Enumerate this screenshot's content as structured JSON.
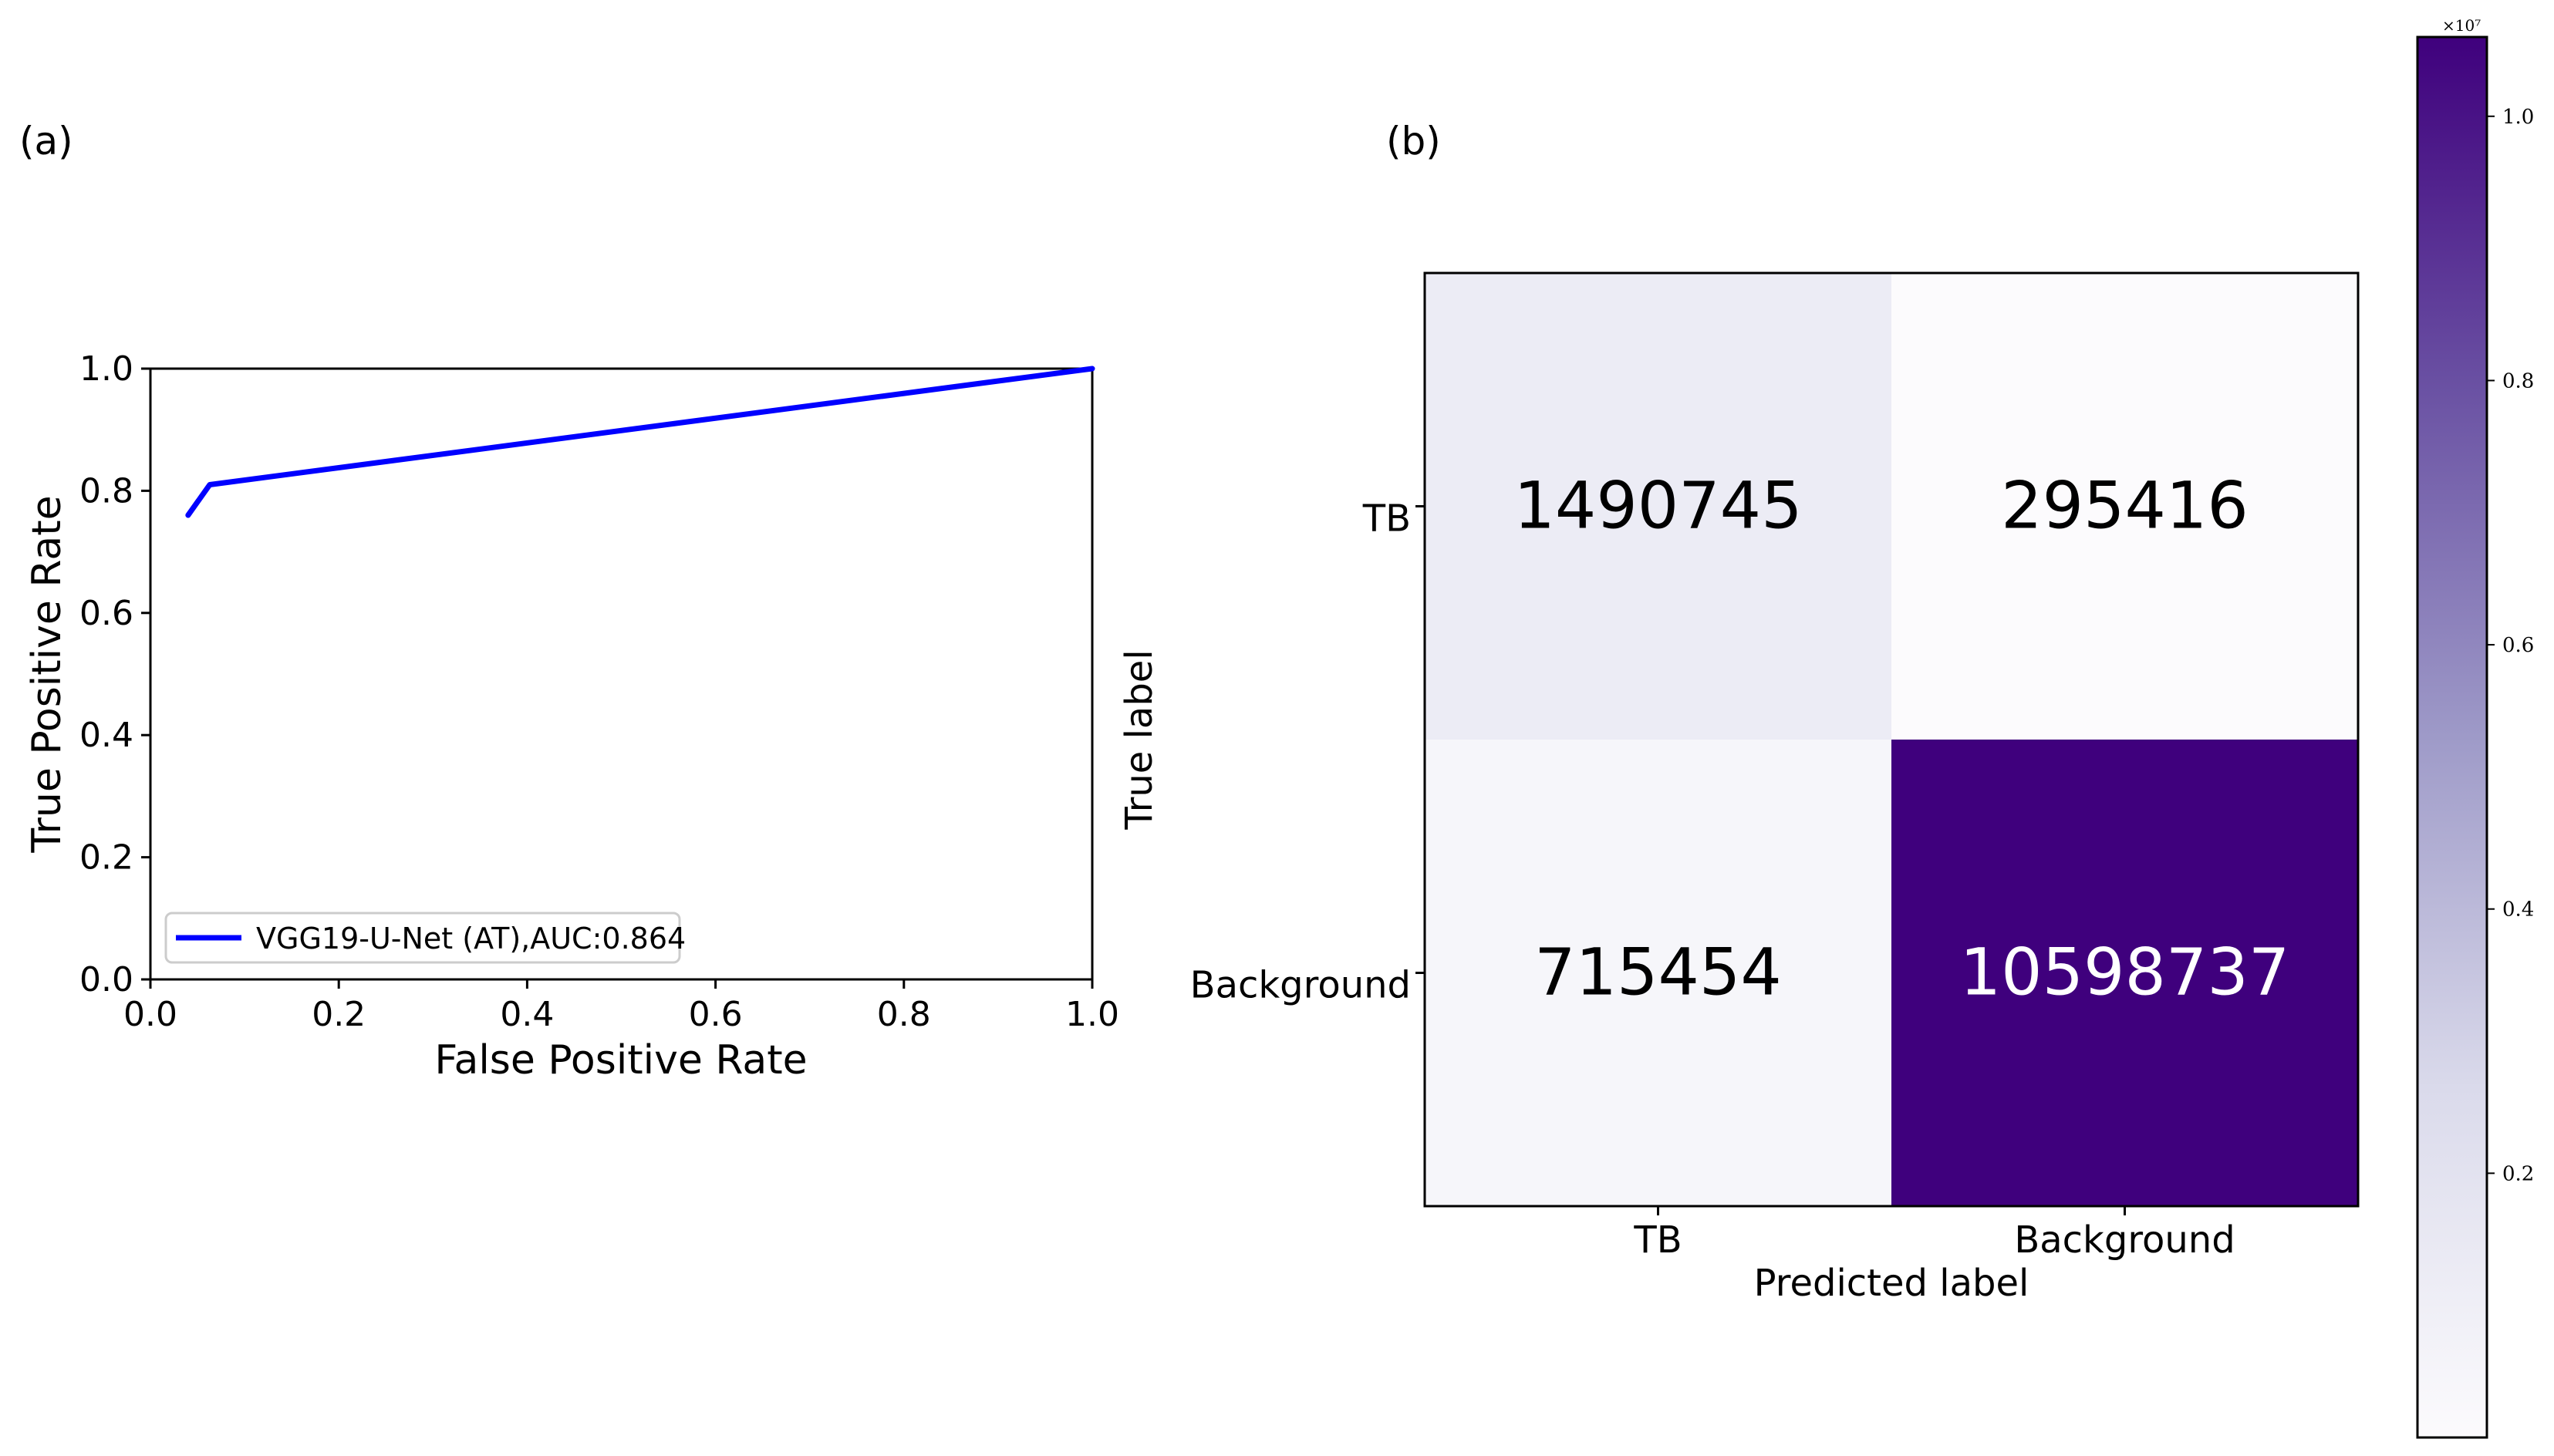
{
  "panels": {
    "a_label": "(a)",
    "b_label": "(b)"
  },
  "chart_data": [
    {
      "type": "line",
      "xlabel": "False Positive Rate",
      "ylabel": "True Positive Rate",
      "xlim": [
        0.0,
        1.0
      ],
      "ylim": [
        0.0,
        1.0
      ],
      "xticks": [
        "0.0",
        "0.2",
        "0.4",
        "0.6",
        "0.8",
        "1.0"
      ],
      "yticks": [
        "0.0",
        "0.2",
        "0.4",
        "0.6",
        "0.8",
        "1.0"
      ],
      "grid": false,
      "legend_position": "lower-left",
      "series": [
        {
          "name": "VGG19-U-Net (AT),AUC:0.864",
          "color": "#0000ff",
          "x": [
            0.04,
            0.063,
            1.0
          ],
          "y": [
            0.76,
            0.81,
            1.0
          ]
        }
      ]
    },
    {
      "type": "heatmap",
      "xlabel": "Predicted label",
      "ylabel": "True label",
      "x_categories": [
        "TB",
        "Background"
      ],
      "y_categories": [
        "TB",
        "Background"
      ],
      "values": [
        [
          1490745,
          295416
        ],
        [
          715454,
          10598737
        ]
      ],
      "value_labels": [
        [
          "1490745",
          "295416"
        ],
        [
          "715454",
          "10598737"
        ]
      ],
      "colormap": "Purples",
      "colorbar": {
        "ticks": [
          "0.2",
          "0.4",
          "0.6",
          "0.8",
          "1.0"
        ],
        "tick_values": [
          0.2,
          0.4,
          0.6,
          0.8,
          1.0
        ],
        "range": [
          0.0,
          1.06
        ],
        "multiplier": "×10⁷"
      }
    }
  ]
}
